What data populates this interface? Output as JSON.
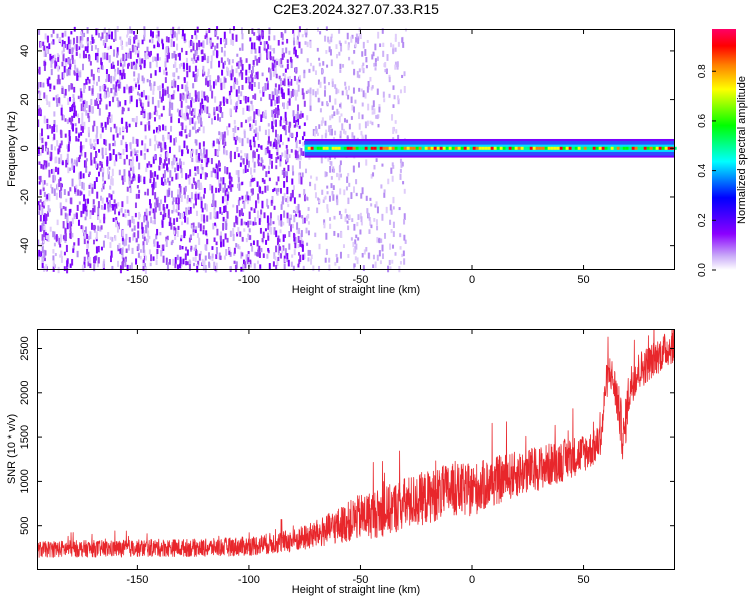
{
  "figure_title": "C2E3.2024.327.07.33.R15",
  "chart_data": [
    {
      "type": "heatmap",
      "title": "C2E3.2024.327.07.33.R15",
      "xlabel": "Height of straight line (km)",
      "ylabel": "Frequency (Hz)",
      "xlim": [
        -195,
        91
      ],
      "ylim": [
        -50,
        49
      ],
      "xticks": [
        -150,
        -100,
        -50,
        0,
        50
      ],
      "yticks": [
        -40,
        -20,
        0,
        20,
        40
      ],
      "xtick_labels": [
        "-150",
        "-100",
        "-50",
        "0",
        "50"
      ],
      "ytick_labels": [
        "-40",
        "-20",
        "0",
        "20",
        "40"
      ],
      "colorbar": {
        "label": "Normalized spectral amplitude",
        "range": [
          0,
          0.97
        ],
        "ticks": [
          0.0,
          0.2,
          0.4,
          0.6,
          0.8
        ],
        "tick_labels": [
          "0.0",
          "0.2",
          "0.4",
          "0.6",
          "0.8"
        ],
        "colormap": [
          "#ffffff",
          "#c8a8f8",
          "#8b00ff",
          "#0000ff",
          "#00ffff",
          "#00ff00",
          "#ffff00",
          "#ff8000",
          "#ff0000",
          "#ff0066"
        ]
      },
      "regions": [
        {
          "description": "broadband noise",
          "x_range": [
            -195,
            -75
          ],
          "freq_range": [
            -50,
            49
          ],
          "amplitude": 0.05
        },
        {
          "description": "sparse noise",
          "x_range": [
            -75,
            -30
          ],
          "freq_range": [
            -50,
            49
          ],
          "amplitude": 0.02
        },
        {
          "description": "narrow band signal",
          "x_range": [
            -75,
            91
          ],
          "center_freq": 0,
          "bandwidth_hz": 6,
          "peak_amplitude": 0.95
        }
      ],
      "grid": false
    },
    {
      "type": "line",
      "xlabel": "Height of straight line (km)",
      "ylabel": "SNR (10 * v/v)",
      "xlim": [
        -195,
        91
      ],
      "ylim": [
        0,
        2720
      ],
      "xticks": [
        -150,
        -100,
        -50,
        0,
        50
      ],
      "yticks": [
        500,
        1000,
        1500,
        2000,
        2500
      ],
      "xtick_labels": [
        "-150",
        "-100",
        "-50",
        "0",
        "50"
      ],
      "ytick_labels": [
        "500",
        "1000",
        "1500",
        "2000",
        "2500"
      ],
      "color": "#e8262b",
      "grid": false,
      "series": [
        {
          "x": [
            -195,
            -180,
            -160,
            -140,
            -120,
            -100,
            -90,
            -80,
            -70,
            -60,
            -50,
            -40,
            -30,
            -20,
            -10,
            0,
            10,
            20,
            30,
            40,
            50,
            55,
            58,
            60,
            62,
            65,
            68,
            70,
            72,
            75,
            80,
            85,
            91
          ],
          "y": [
            230,
            240,
            240,
            250,
            250,
            270,
            300,
            330,
            400,
            500,
            600,
            650,
            750,
            820,
            900,
            900,
            1000,
            1080,
            1150,
            1230,
            1320,
            1380,
            1500,
            2100,
            2250,
            1950,
            1450,
            1950,
            2150,
            2250,
            2350,
            2450,
            2550
          ],
          "noise_amplitude": [
            90,
            95,
            95,
            100,
            100,
            110,
            120,
            130,
            160,
            200,
            260,
            280,
            300,
            300,
            300,
            300,
            280,
            260,
            250,
            240,
            220,
            200,
            180,
            200,
            200,
            260,
            300,
            250,
            250,
            220,
            200,
            200,
            200
          ]
        }
      ]
    }
  ]
}
